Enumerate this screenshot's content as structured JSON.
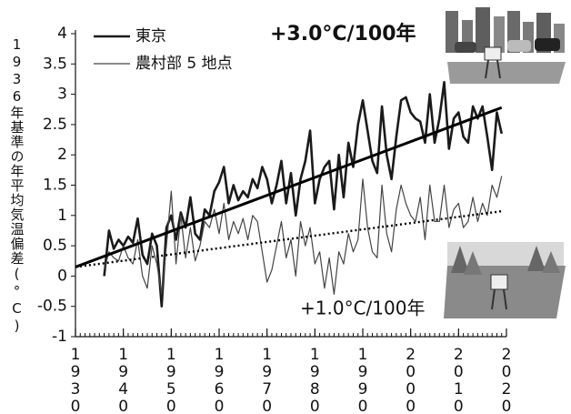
{
  "chart_data": {
    "type": "line",
    "y_label": "1936年基準の年平均気温偏差(°C)",
    "annotations": [
      "+3.0°C/100年",
      "+1.0°C/100年"
    ],
    "x": [
      1936,
      1937,
      1938,
      1939,
      1940,
      1941,
      1942,
      1943,
      1944,
      1945,
      1946,
      1947,
      1948,
      1949,
      1950,
      1951,
      1952,
      1953,
      1954,
      1955,
      1956,
      1957,
      1958,
      1959,
      1960,
      1961,
      1962,
      1963,
      1964,
      1965,
      1966,
      1967,
      1968,
      1969,
      1970,
      1971,
      1972,
      1973,
      1974,
      1975,
      1976,
      1977,
      1978,
      1979,
      1980,
      1981,
      1982,
      1983,
      1984,
      1985,
      1986,
      1987,
      1988,
      1989,
      1990,
      1991,
      1992,
      1993,
      1994,
      1995,
      1996,
      1997,
      1998,
      1999,
      2000,
      2001,
      2002,
      2003,
      2004,
      2005,
      2006,
      2007,
      2008,
      2009,
      2010,
      2011,
      2012,
      2013,
      2014,
      2015,
      2016,
      2017,
      2018,
      2019
    ],
    "series": [
      {
        "name": "東京",
        "color": "#1a1a1a",
        "width": 2.6,
        "values": [
          0,
          0.75,
          0.45,
          0.6,
          0.5,
          0.65,
          0.55,
          0.95,
          0.35,
          0.2,
          0.7,
          0.5,
          -0.5,
          0.8,
          1.0,
          0.6,
          1.05,
          0.8,
          1.3,
          0.7,
          0.6,
          1.1,
          1.0,
          1.4,
          1.55,
          1.8,
          1.2,
          1.5,
          1.25,
          1.4,
          1.3,
          1.6,
          1.45,
          1.8,
          1.6,
          1.2,
          1.5,
          1.9,
          1.2,
          1.7,
          1.0,
          1.6,
          1.9,
          2.4,
          1.2,
          1.6,
          1.8,
          1.9,
          1.1,
          2.0,
          1.3,
          2.2,
          1.8,
          2.5,
          2.9,
          2.4,
          1.9,
          1.7,
          2.8,
          2.0,
          1.6,
          2.3,
          2.9,
          2.95,
          2.7,
          2.6,
          2.55,
          2.2,
          3.0,
          2.2,
          2.6,
          3.2,
          2.1,
          2.6,
          2.7,
          2.3,
          2.2,
          2.8,
          2.6,
          2.8,
          2.3,
          1.75,
          2.7,
          2.35
        ]
      },
      {
        "name": "農村部 5 地点",
        "color": "#444444",
        "width": 1.2,
        "values": [
          0.1,
          0.4,
          0.3,
          0.25,
          0.5,
          0.3,
          0.2,
          0.6,
          0,
          -0.2,
          0.5,
          0.2,
          -0.3,
          0.5,
          1.4,
          0.2,
          1.0,
          0.3,
          0.8,
          0.25,
          0.5,
          0.9,
          0.8,
          1.1,
          0.7,
          1.2,
          0.6,
          0.9,
          0.7,
          0.95,
          0.6,
          1.0,
          0.9,
          0.4,
          -0.1,
          0.1,
          0.5,
          0.9,
          0.3,
          0.6,
          0.0,
          0.9,
          0.5,
          0.8,
          0.2,
          0.4,
          -0.2,
          0.3,
          -0.3,
          0.4,
          0.2,
          0.7,
          0.4,
          0.6,
          1.6,
          0.8,
          0.4,
          0.3,
          1.5,
          0.7,
          0.4,
          1.1,
          1.5,
          1.2,
          1.0,
          0.9,
          1.3,
          0.6,
          1.5,
          0.9,
          0.9,
          1.5,
          0.8,
          1.1,
          1.2,
          0.8,
          0.9,
          1.3,
          0.9,
          1.2,
          1.0,
          1.5,
          1.3,
          1.65
        ]
      }
    ],
    "trend_lines": [
      {
        "x": [
          1930,
          2019
        ],
        "values": [
          0.15,
          2.78
        ],
        "style": "solid",
        "color": "#000000"
      },
      {
        "x": [
          1930,
          2019
        ],
        "values": [
          0.15,
          1.07
        ],
        "style": "dotted",
        "color": "#000000"
      }
    ],
    "xlim": [
      1930,
      2020
    ],
    "xticks": [
      1930,
      1940,
      1950,
      1960,
      1970,
      1980,
      1990,
      2000,
      2010,
      2020
    ],
    "ylim": [
      -1,
      4
    ],
    "yticks": [
      -1,
      -0.5,
      0,
      0.5,
      1,
      1.5,
      2,
      2.5,
      3,
      3.5,
      4
    ],
    "grid": false,
    "legend": "upper left"
  }
}
